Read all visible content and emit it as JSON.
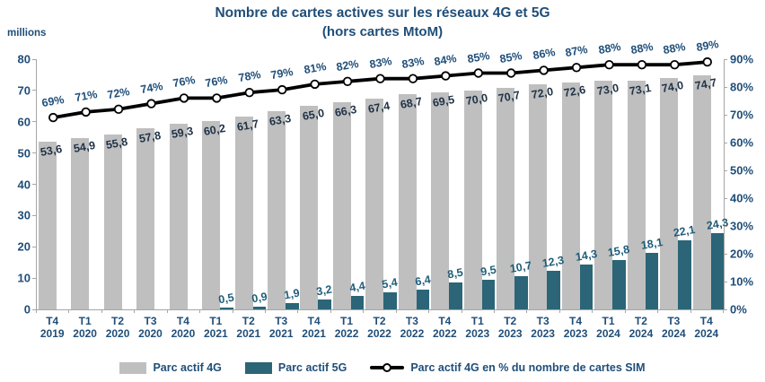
{
  "title": "Nombre de cartes actives sur les réseaux 4G et 5G",
  "subtitle": "(hors cartes MtoM)",
  "unit_label": "millions",
  "colors": {
    "bar_4g": "#BFBFBF",
    "bar_5g": "#2B6577",
    "title_text": "#1F4E79",
    "axis_text": "#1F4E79",
    "label_4g": "#1F3247",
    "label_5g": "#1F5D7A",
    "line": "#000000",
    "axis_line": "#A6A6A6"
  },
  "legend": {
    "items": [
      {
        "label": "Parc actif 4G",
        "type": "bar"
      },
      {
        "label": "Parc actif 5G",
        "type": "bar"
      },
      {
        "label": "Parc actif 4G en % du nombre de cartes SIM",
        "type": "line"
      }
    ]
  },
  "chart_data": {
    "type": "bar",
    "subtype": "grouped bars with line on secondary axis",
    "title": "Nombre de cartes actives sur les réseaux 4G et 5G (hors cartes MtoM)",
    "categories": [
      "T4 2019",
      "T1 2020",
      "T2 2020",
      "T3 2020",
      "T4 2020",
      "T1 2021",
      "T2 2021",
      "T3 2021",
      "T4 2021",
      "T1 2022",
      "T2 2022",
      "T3 2022",
      "T4 2022",
      "T1 2023",
      "T2 2023",
      "T3 2023",
      "T4 2023",
      "T1 2024",
      "T2 2024",
      "T3 2024",
      "T4 2024"
    ],
    "series": [
      {
        "name": "Parc actif 4G",
        "type": "bar",
        "axis": "left",
        "values": [
          53.6,
          54.9,
          55.8,
          57.8,
          59.3,
          60.2,
          61.7,
          63.3,
          65.0,
          66.3,
          67.4,
          68.7,
          69.5,
          70.0,
          70.7,
          72.0,
          72.6,
          73.0,
          73.1,
          74.0,
          74.7
        ],
        "labels": [
          "53,6",
          "54,9",
          "55,8",
          "57,8",
          "59,3",
          "60,2",
          "61,7",
          "63,3",
          "65,0",
          "66,3",
          "67,4",
          "68,7",
          "69,5",
          "70,0",
          "70,7",
          "72,0",
          "72,6",
          "73,0",
          "73,1",
          "74,0",
          "74,7"
        ]
      },
      {
        "name": "Parc actif 5G",
        "type": "bar",
        "axis": "left",
        "values": [
          null,
          null,
          null,
          null,
          null,
          0.5,
          0.9,
          1.9,
          3.2,
          4.4,
          5.4,
          6.4,
          8.5,
          9.5,
          10.7,
          12.3,
          14.3,
          15.8,
          18.1,
          22.1,
          24.3
        ],
        "labels": [
          null,
          null,
          null,
          null,
          null,
          "0,5",
          "0,9",
          "1,9",
          "3,2",
          "4,4",
          "5,4",
          "6,4",
          "8,5",
          "9,5",
          "10,7",
          "12,3",
          "14,3",
          "15,8",
          "18,1",
          "22,1",
          "24,3"
        ]
      },
      {
        "name": "Parc actif 4G en % du nombre de cartes SIM",
        "type": "line",
        "axis": "right",
        "values": [
          69,
          71,
          72,
          74,
          76,
          76,
          78,
          79,
          81,
          82,
          83,
          83,
          84,
          85,
          85,
          86,
          87,
          88,
          88,
          88,
          89
        ],
        "labels": [
          "69%",
          "71%",
          "72%",
          "74%",
          "76%",
          "76%",
          "78%",
          "79%",
          "81%",
          "82%",
          "83%",
          "83%",
          "84%",
          "85%",
          "85%",
          "86%",
          "87%",
          "88%",
          "88%",
          "88%",
          "89%"
        ]
      }
    ],
    "y_left": {
      "label": "millions",
      "min": 0,
      "max": 80,
      "tick_step": 10,
      "ticks": [
        0,
        10,
        20,
        30,
        40,
        50,
        60,
        70,
        80
      ]
    },
    "y_right": {
      "min": 0,
      "max": 90,
      "tick_step": 10,
      "tick_labels": [
        "0%",
        "10%",
        "20%",
        "30%",
        "40%",
        "50%",
        "60%",
        "70%",
        "80%",
        "90%"
      ]
    },
    "grid": false,
    "legend_position": "bottom"
  }
}
